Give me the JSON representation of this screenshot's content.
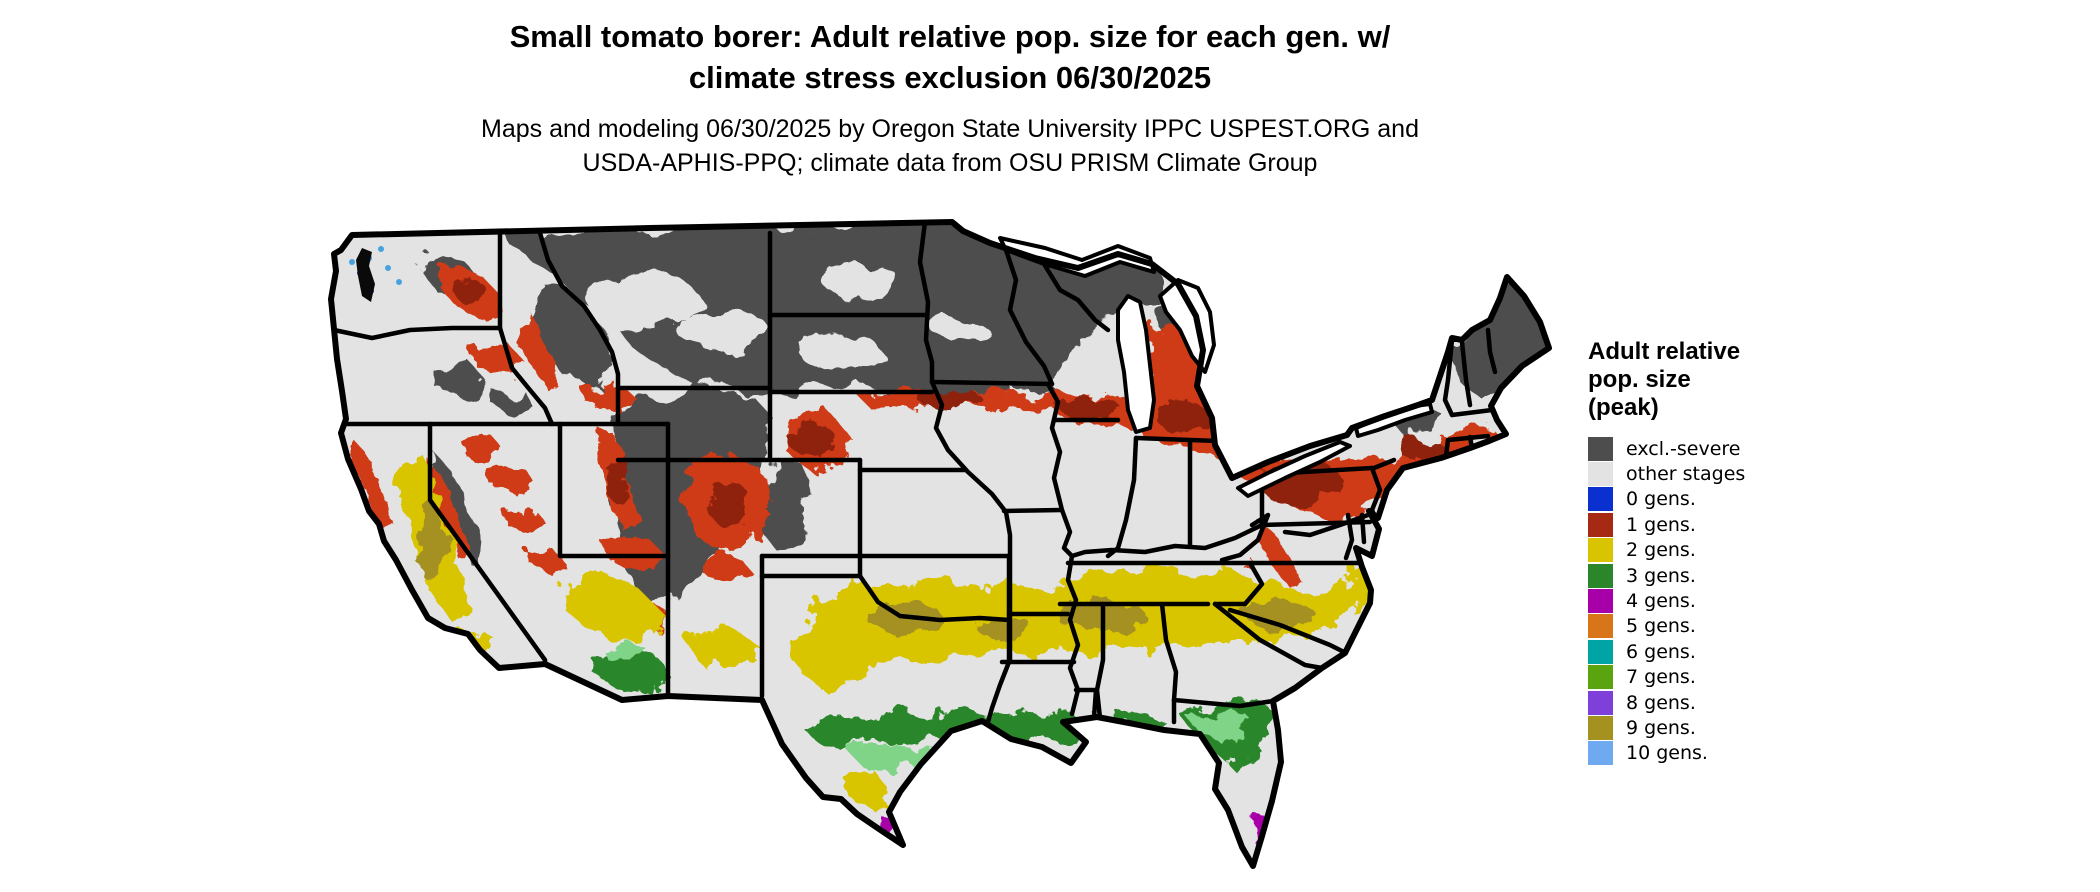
{
  "title": {
    "line1": "Small tomato borer: Adult relative pop. size for each gen. w/",
    "line2": "climate stress exclusion 06/30/2025"
  },
  "subtitle": {
    "line1": "Maps and modeling 06/30/2025 by Oregon State University IPPC USPEST.ORG and",
    "line2": "USDA-APHIS-PPQ; climate data from OSU PRISM Climate Group"
  },
  "legend": {
    "title_lines": [
      "Adult relative",
      "pop. size",
      "(peak)"
    ],
    "items": [
      {
        "label": "excl.-severe",
        "color": "#4d4d4d"
      },
      {
        "label": "other stages",
        "color": "#e3e3e3"
      },
      {
        "label": "0 gens.",
        "color": "#0b30d0"
      },
      {
        "label": "1 gens.",
        "color": "#a62913"
      },
      {
        "label": "2 gens.",
        "color": "#d9c401"
      },
      {
        "label": "3 gens.",
        "color": "#2a8629"
      },
      {
        "label": "4 gens.",
        "color": "#a800a8"
      },
      {
        "label": "5 gens.",
        "color": "#d97519"
      },
      {
        "label": "6 gens.",
        "color": "#00a4a4"
      },
      {
        "label": "7 gens.",
        "color": "#5aa50f"
      },
      {
        "label": "8 gens.",
        "color": "#7f3fd9"
      },
      {
        "label": "9 gens.",
        "color": "#a49120"
      },
      {
        "label": "10 gens.",
        "color": "#6faaf0"
      }
    ]
  },
  "map": {
    "background": "#ffffff",
    "land": "#e3e3e3",
    "border": "#000000",
    "water_fill": "#ffffff",
    "shades": {
      "red_bright": "#cf3a16",
      "red_dark": "#8e2110",
      "green_light": "#7fd488",
      "blue_light": "#49a2e0",
      "olive": "#a49120"
    }
  }
}
